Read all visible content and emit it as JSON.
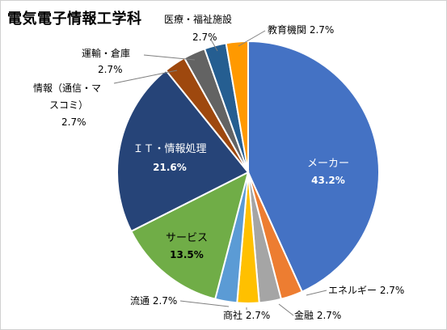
{
  "title": "電気電子情報工学科",
  "chart_data": {
    "type": "pie",
    "title": "電気電子情報工学科",
    "start_angle_deg": 0,
    "direction": "clockwise",
    "slices": [
      {
        "label": "メーカー",
        "value": 43.2,
        "value_label": "43.2%",
        "color": "#4472C4",
        "label_placement": "inside",
        "text_color": "#ffffff"
      },
      {
        "label": "エネルギー",
        "value": 2.7,
        "value_label": "2.7%",
        "color": "#ED7D31",
        "label_placement": "outside"
      },
      {
        "label": "金融",
        "value": 2.7,
        "value_label": "2.7%",
        "color": "#A5A5A5",
        "label_placement": "outside"
      },
      {
        "label": "商社",
        "value": 2.7,
        "value_label": "2.7%",
        "color": "#FFC000",
        "label_placement": "outside"
      },
      {
        "label": "流通",
        "value": 2.7,
        "value_label": "2.7%",
        "color": "#5B9BD5",
        "label_placement": "outside"
      },
      {
        "label": "サービス",
        "value": 13.5,
        "value_label": "13.5%",
        "color": "#70AD47",
        "label_placement": "inside",
        "text_color": "#000000"
      },
      {
        "label": "ＩＴ・情報処理",
        "value": 21.6,
        "value_label": "21.6%",
        "color": "#264478",
        "label_placement": "inside",
        "text_color": "#ffffff"
      },
      {
        "label": "情報（通信・マスコミ）",
        "value": 2.7,
        "value_label": "2.7%",
        "color": "#9E480E",
        "label_placement": "outside"
      },
      {
        "label": "運輸・倉庫",
        "value": 2.7,
        "value_label": "2.7%",
        "color": "#636363",
        "label_placement": "outside"
      },
      {
        "label": "医療・福祉施設",
        "value": 2.7,
        "value_label": "2.7%",
        "color": "#255E91",
        "label_placement": "outside"
      },
      {
        "label": "教育機関",
        "value": 2.7,
        "value_label": "2.7%",
        "color": "#FF9900",
        "label_placement": "outside"
      }
    ]
  }
}
